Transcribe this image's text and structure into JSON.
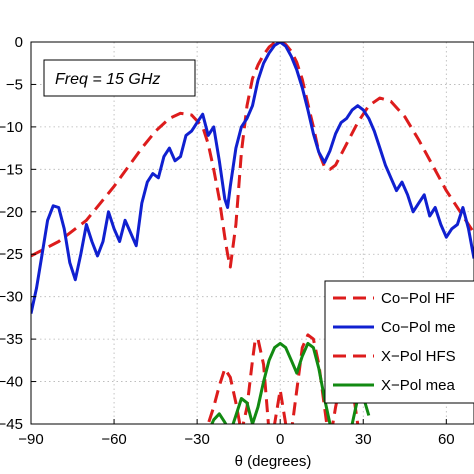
{
  "chart_data": {
    "type": "line",
    "xlabel": "θ (degrees)",
    "ylabel": "",
    "xlim": [
      -90,
      70
    ],
    "ylim": [
      -45,
      0
    ],
    "xticks": [
      -90,
      -60,
      -30,
      0,
      30,
      60
    ],
    "xtick_labels": [
      "−90",
      "−60",
      "−30",
      "0",
      "30",
      "60"
    ],
    "yticks": [
      0,
      -5,
      -10,
      -15,
      -20,
      -25,
      -30,
      -35,
      -40,
      -45
    ],
    "ytick_labels": [
      "0",
      "−5",
      "−10",
      "−15",
      "−20",
      "−25",
      "−30",
      "−35",
      "−40",
      "−45"
    ],
    "grid": true,
    "legend_position": "lower-right",
    "annotation": "Freq = 15 GHz",
    "series": [
      {
        "name": "Co−Pol HF",
        "color": "#dd1c1c",
        "dash": "dashed",
        "x": [
          -90,
          -80,
          -70,
          -60,
          -50,
          -45,
          -40,
          -36,
          -32,
          -28,
          -26,
          -24,
          -22,
          -20,
          -19,
          -18,
          -16,
          -14,
          -12,
          -10,
          -8,
          -6,
          -4,
          -2,
          0,
          2,
          4,
          6,
          8,
          10,
          12,
          14,
          16,
          18,
          20,
          24,
          28,
          32,
          36,
          40,
          45,
          50,
          55,
          60,
          65,
          70
        ],
        "y": [
          -25.2,
          -23.5,
          -21,
          -17,
          -12.5,
          -10.5,
          -9,
          -8.4,
          -8.6,
          -10,
          -12,
          -15,
          -18.5,
          -23,
          -25,
          -26.5,
          -21.5,
          -13,
          -7.5,
          -4.3,
          -2.7,
          -1.5,
          -0.6,
          -0.1,
          0,
          -0.3,
          -1.1,
          -2.4,
          -4.4,
          -7.3,
          -10,
          -13,
          -14.7,
          -15,
          -14.5,
          -12,
          -9.5,
          -7.5,
          -6.6,
          -7,
          -8.8,
          -11.5,
          -14.5,
          -17.5,
          -20,
          -22.5
        ]
      },
      {
        "name": "Co−Pol me",
        "color": "#1020d0",
        "dash": "solid",
        "x": [
          -90,
          -88,
          -86,
          -84,
          -82,
          -80,
          -78,
          -76,
          -74,
          -72,
          -70,
          -68,
          -66,
          -64,
          -62,
          -60,
          -58,
          -56,
          -54,
          -52,
          -50,
          -48,
          -46,
          -44,
          -42,
          -40,
          -38,
          -36,
          -34,
          -32,
          -30,
          -28,
          -26,
          -24,
          -22,
          -20,
          -19,
          -18,
          -16,
          -14,
          -12,
          -10,
          -8,
          -6,
          -4,
          -2,
          0,
          2,
          4,
          6,
          8,
          10,
          12,
          14,
          16,
          18,
          20,
          22,
          24,
          26,
          28,
          30,
          32,
          34,
          36,
          38,
          40,
          42,
          44,
          46,
          48,
          50,
          52,
          54,
          56,
          58,
          60,
          62,
          64,
          66,
          68,
          70
        ],
        "y": [
          -32,
          -29,
          -25,
          -21,
          -19.3,
          -19.5,
          -22,
          -26,
          -28,
          -25,
          -21.5,
          -23.5,
          -25.2,
          -23.5,
          -20,
          -22,
          -23.5,
          -21,
          -22.5,
          -24,
          -19,
          -16.5,
          -15.5,
          -16,
          -13.5,
          -12.5,
          -14,
          -13.5,
          -11,
          -10.5,
          -9.5,
          -8.5,
          -11,
          -10,
          -14,
          -18.5,
          -19.5,
          -17,
          -12.5,
          -10,
          -9,
          -7.5,
          -4.5,
          -2.5,
          -1.3,
          -0.4,
          0,
          -0.5,
          -1.7,
          -3.3,
          -5.4,
          -8,
          -10.8,
          -13,
          -14.2,
          -12.8,
          -10.8,
          -9.5,
          -9,
          -8,
          -7.5,
          -8,
          -9,
          -10.5,
          -12.5,
          -14.5,
          -16,
          -17.5,
          -16.5,
          -18,
          -20,
          -19,
          -18,
          -20.5,
          -19.5,
          -21.5,
          -23,
          -22,
          -21.5,
          -19.5,
          -22,
          -25.5
        ]
      },
      {
        "name": "X−Pol HFS",
        "color": "#dd1c1c",
        "dash": "dashed",
        "x": [
          -28,
          -26,
          -24,
          -22,
          -20,
          -18,
          -16,
          -14,
          -12,
          -10,
          -9,
          -8,
          -6,
          -4,
          -2,
          0,
          2,
          4,
          6,
          8,
          10,
          12,
          14,
          16,
          17,
          18,
          20,
          22,
          24,
          26,
          28
        ],
        "y": [
          -47,
          -45,
          -43,
          -40.5,
          -38.5,
          -39.5,
          -42.5,
          -46,
          -43,
          -37.5,
          -35,
          -35,
          -38,
          -46,
          -45,
          -41,
          -45,
          -46,
          -41,
          -36,
          -34.5,
          -35,
          -38,
          -43,
          -45.5,
          -47,
          -43,
          -40,
          -38.5,
          -40.5,
          -45
        ]
      },
      {
        "name": "X−Pol mea",
        "color": "#128a12",
        "dash": "solid",
        "x": [
          -26,
          -24,
          -22,
          -20,
          -18,
          -16,
          -14,
          -12,
          -10,
          -8,
          -6,
          -4,
          -2,
          0,
          2,
          4,
          6,
          8,
          10,
          12,
          14,
          16,
          18,
          20,
          26,
          28,
          30,
          32
        ],
        "y": [
          -46,
          -44.5,
          -43.8,
          -44.8,
          -46,
          -44,
          -42,
          -42.5,
          -45,
          -43,
          -40,
          -37.5,
          -36,
          -35.5,
          -36,
          -37.5,
          -39,
          -37,
          -35.5,
          -36,
          -38.5,
          -42,
          -45,
          -47,
          -45,
          -42,
          -41.8,
          -44
        ]
      }
    ]
  }
}
